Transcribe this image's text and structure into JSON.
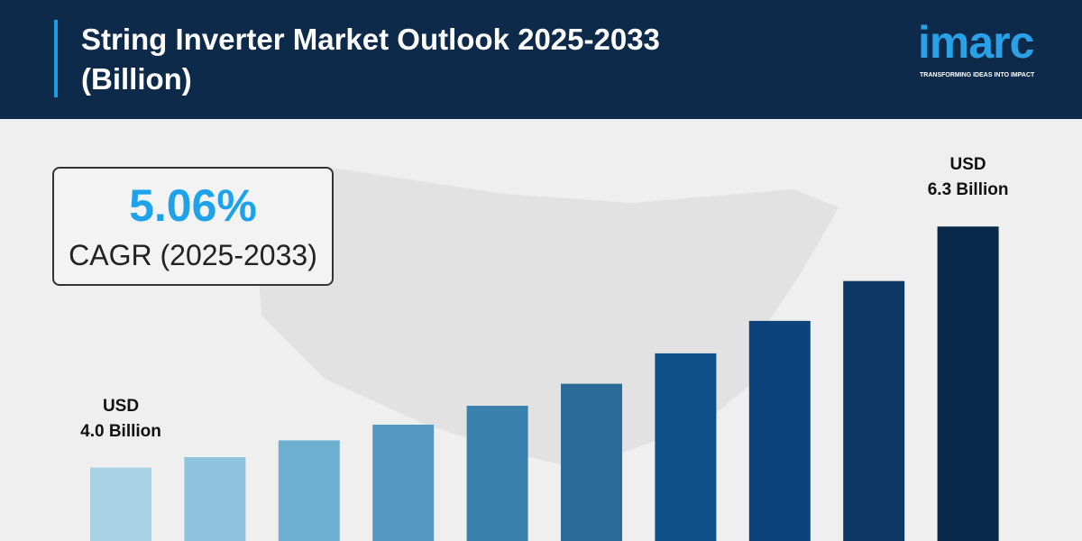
{
  "chart_data": {
    "type": "bar",
    "title": "String Inverter Market Outlook 2025-2033 (Billion)",
    "brand": "imarc",
    "tagline": "TRANSFORMING IDEAS INTO IMPACT",
    "cagr": "5.06%",
    "cagr_label": "CAGR (2025-2033)",
    "values": [
      4.0,
      4.1,
      4.26,
      4.41,
      4.59,
      4.8,
      5.09,
      5.4,
      5.78,
      6.3
    ],
    "value_labels": [
      "USD\n4.0 Billion",
      null,
      null,
      null,
      null,
      null,
      null,
      null,
      null,
      "USD\n6.3 Billion"
    ],
    "colors": [
      "#a8d3e6",
      "#8ec4de",
      "#6eaed0",
      "#5599c0",
      "#3a81ad",
      "#2a6b99",
      "#10508a",
      "#0b437a",
      "#0d3866",
      "#0b2a4b"
    ],
    "ylim": [
      3.3,
      7.3
    ]
  }
}
